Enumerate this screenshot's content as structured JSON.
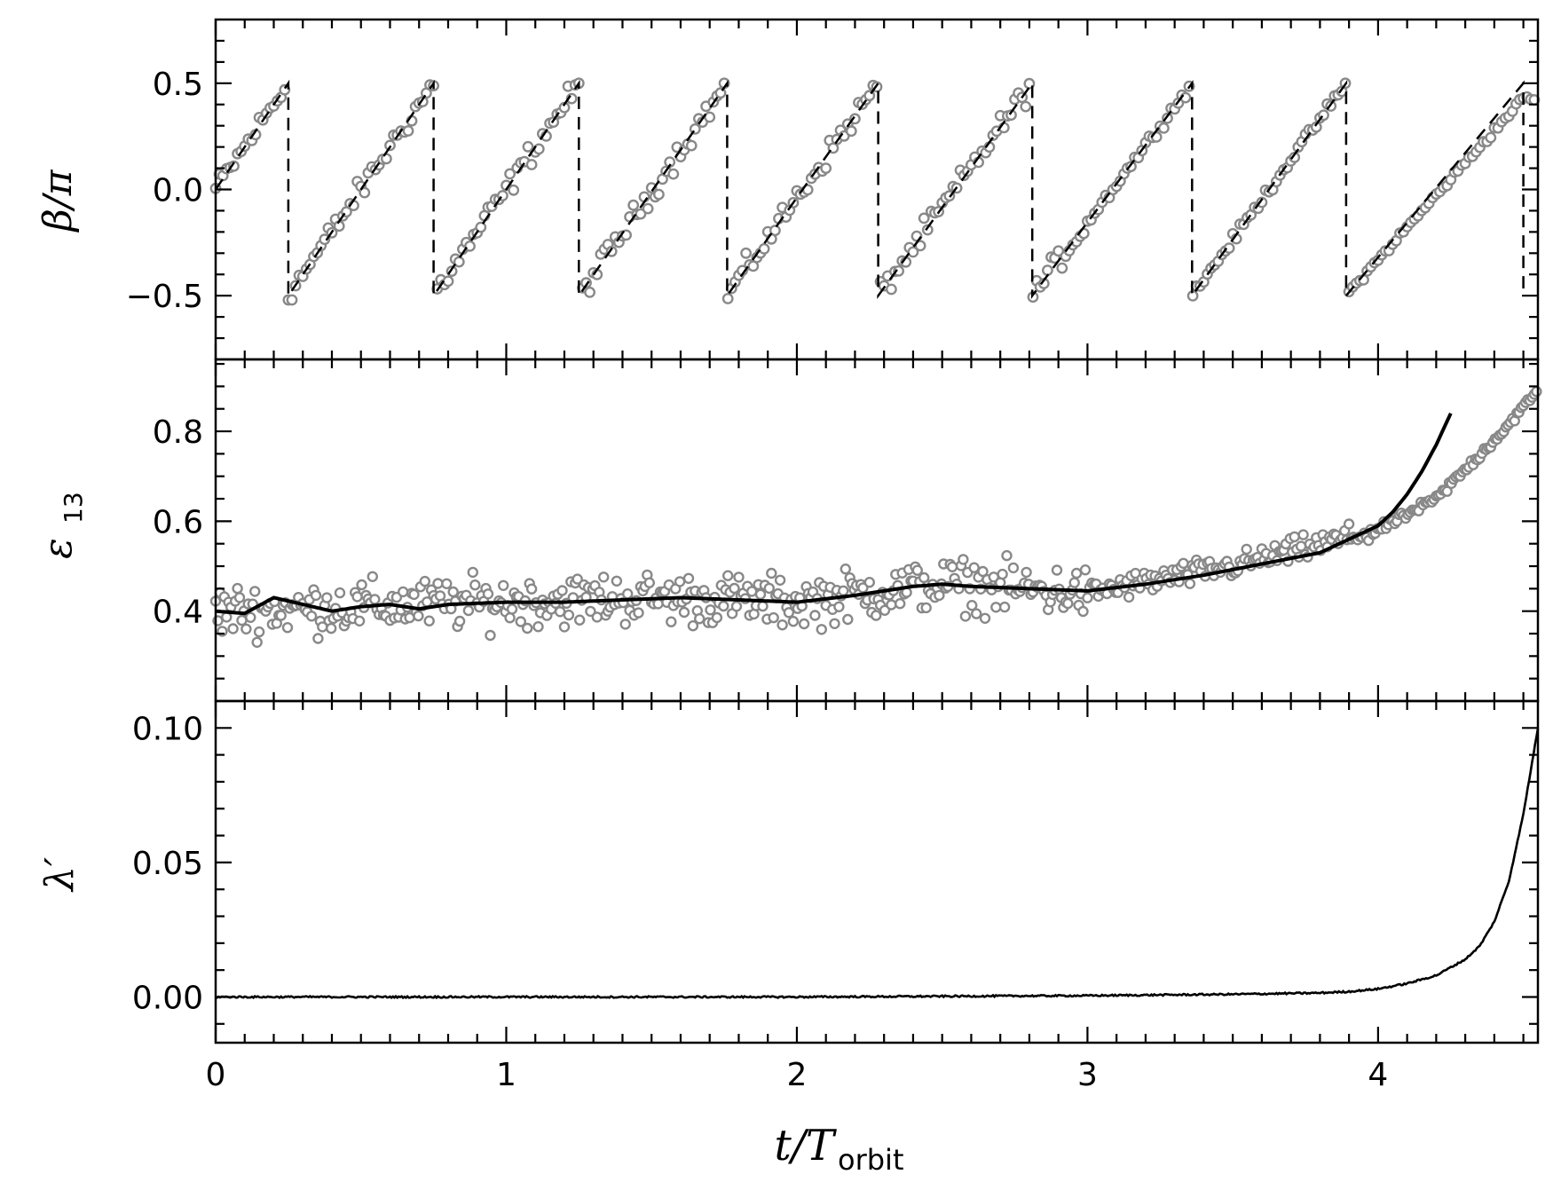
{
  "chart_data": {
    "type": "multi-panel",
    "x_axis": {
      "label": "t/T",
      "label_subscript": "orbit",
      "range": [
        0,
        4.55
      ],
      "ticks": [
        "0",
        "1",
        "2",
        "3",
        "4"
      ],
      "tick_values": [
        0,
        1,
        2,
        3,
        4
      ]
    },
    "panels": [
      {
        "id": "beta",
        "type": "scatter+line",
        "ylabel": "β/π",
        "ylim": [
          -0.8,
          0.8
        ],
        "yticks": [
          "0.5",
          "0.0",
          "−0.5"
        ],
        "ytick_values": [
          0.5,
          0.0,
          -0.5
        ],
        "series": [
          {
            "kind": "dashed-line",
            "style": "sawtooth",
            "color": "#000000",
            "wrap_times": [
              0.25,
              0.75,
              1.25,
              1.76,
              2.28,
              2.81,
              3.36,
              3.89,
              4.5
            ],
            "range": [
              -0.5,
              0.5
            ],
            "start": [
              0,
              0.0
            ]
          },
          {
            "kind": "open-circles",
            "color": "#888888",
            "note_points": "noisy samples following the sawtooth, tighter after t≈3; for t>3.9 drifting below dashed"
          }
        ]
      },
      {
        "id": "eps13",
        "type": "scatter+line",
        "ylabel": "ε",
        "ylabel_subscript": "13",
        "ylim": [
          0.2,
          0.96
        ],
        "yticks": [
          "0.8",
          "0.6",
          "0.4"
        ],
        "ytick_values": [
          0.8,
          0.6,
          0.4
        ],
        "series": [
          {
            "kind": "solid-line",
            "color": "#000000",
            "x": [
              0,
              0.1,
              0.2,
              0.3,
              0.4,
              0.5,
              0.6,
              0.7,
              0.8,
              1.0,
              1.2,
              1.4,
              1.6,
              1.8,
              2.0,
              2.2,
              2.4,
              2.5,
              2.6,
              2.8,
              3.0,
              3.2,
              3.4,
              3.6,
              3.8,
              3.9,
              4.0,
              4.05,
              4.1,
              4.15,
              4.2,
              4.25
            ],
            "y": [
              0.4,
              0.395,
              0.43,
              0.415,
              0.4,
              0.41,
              0.415,
              0.405,
              0.415,
              0.42,
              0.42,
              0.425,
              0.43,
              0.425,
              0.42,
              0.435,
              0.455,
              0.46,
              0.455,
              0.45,
              0.445,
              0.46,
              0.48,
              0.505,
              0.53,
              0.56,
              0.59,
              0.62,
              0.66,
              0.71,
              0.77,
              0.84
            ]
          },
          {
            "kind": "open-circles",
            "color": "#888888",
            "x": [
              0,
              0.5,
              1.0,
              1.5,
              2.0,
              2.5,
              3.0,
              3.5,
              4.0,
              4.2,
              4.4,
              4.55
            ],
            "y": [
              0.4,
              0.41,
              0.42,
              0.43,
              0.42,
              0.46,
              0.44,
              0.5,
              0.58,
              0.65,
              0.78,
              0.89
            ]
          }
        ]
      },
      {
        "id": "lambda",
        "type": "line",
        "ylabel": "λ′",
        "ylim": [
          -0.017,
          0.11
        ],
        "yticks": [
          "0.10",
          "0.05",
          "0.00"
        ],
        "ytick_values": [
          0.1,
          0.05,
          0.0
        ],
        "series": [
          {
            "kind": "solid-line",
            "color": "#000000",
            "x": [
              0,
              1,
              2,
              3,
              3.5,
              3.8,
              3.9,
              4.0,
              4.1,
              4.2,
              4.3,
              4.35,
              4.4,
              4.45,
              4.5,
              4.55
            ],
            "y": [
              0.0,
              0.0,
              0.0,
              0.0005,
              0.001,
              0.0015,
              0.002,
              0.003,
              0.005,
              0.008,
              0.014,
              0.019,
              0.028,
              0.043,
              0.068,
              0.1
            ]
          }
        ]
      }
    ],
    "grid": false,
    "legend": "none"
  }
}
